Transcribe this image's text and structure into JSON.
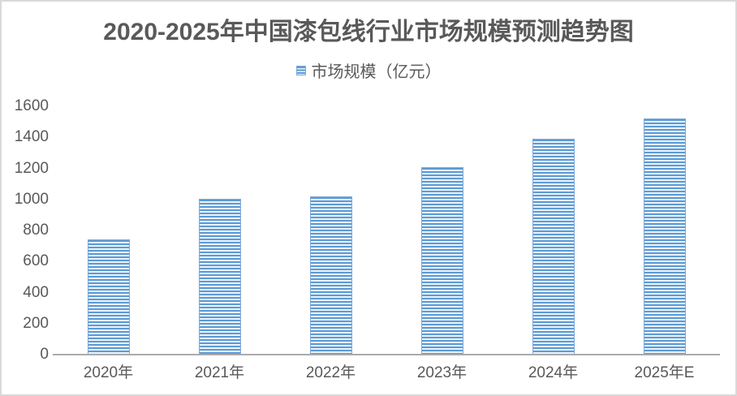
{
  "title": "2020-2025年中国漆包线行业市场规模预测趋势图",
  "legend": {
    "label": "市场规模（亿元）",
    "swatch_icon": "striped-blue-square"
  },
  "colors": {
    "bar_stripe_blue": "#5B9BD5",
    "bar_stripe_light": "#E9F1FA",
    "bar_edge": "#7FA9D6",
    "axis_line": "#ABABAB",
    "text_gray": "#595959",
    "frame_border": "#D9D9D9"
  },
  "chart_data": {
    "type": "bar",
    "title": "2020-2025年中国漆包线行业市场规模预测趋势图",
    "categories": [
      "2020年",
      "2021年",
      "2022年",
      "2023年",
      "2024年",
      "2025年E"
    ],
    "series": [
      {
        "name": "市场规模（亿元）",
        "values": [
          740,
          1005,
          1020,
          1210,
          1390,
          1520
        ]
      }
    ],
    "xlabel": "",
    "ylabel": "",
    "ylim": [
      0,
      1600
    ],
    "yticks": [
      0,
      200,
      400,
      600,
      800,
      1000,
      1200,
      1400,
      1600
    ],
    "grid": false,
    "legend_position": "top-center",
    "bar_style": "horizontal-stripes"
  }
}
